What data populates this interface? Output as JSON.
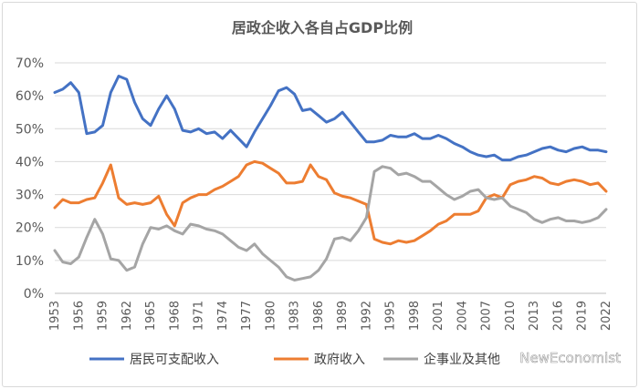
{
  "chart_data": {
    "type": "line",
    "title": "居政企收入各自占GDP比例",
    "xlabel": "",
    "ylabel": "",
    "ylim": [
      0,
      70
    ],
    "y_ticks": [
      "0%",
      "10%",
      "20%",
      "30%",
      "40%",
      "50%",
      "60%",
      "70%"
    ],
    "x_tick_labels": [
      "1953",
      "1956",
      "1959",
      "1962",
      "1965",
      "1968",
      "1971",
      "1974",
      "1977",
      "1980",
      "1983",
      "1986",
      "1989",
      "1992",
      "1995",
      "1998",
      "2001",
      "2004",
      "2007",
      "2010",
      "2013",
      "2016",
      "2019",
      "2022"
    ],
    "x": [
      1953,
      1954,
      1955,
      1956,
      1957,
      1958,
      1959,
      1960,
      1961,
      1962,
      1963,
      1964,
      1965,
      1966,
      1967,
      1968,
      1969,
      1970,
      1971,
      1972,
      1973,
      1974,
      1975,
      1976,
      1977,
      1978,
      1979,
      1980,
      1981,
      1982,
      1983,
      1984,
      1985,
      1986,
      1987,
      1988,
      1989,
      1990,
      1991,
      1992,
      1993,
      1994,
      1995,
      1996,
      1997,
      1998,
      1999,
      2000,
      2001,
      2002,
      2003,
      2004,
      2005,
      2006,
      2007,
      2008,
      2009,
      2010,
      2011,
      2012,
      2013,
      2014,
      2015,
      2016,
      2017,
      2018,
      2019,
      2020,
      2021,
      2022
    ],
    "legend_position": "bottom",
    "grid": true,
    "series": [
      {
        "name": "居民可支配收入",
        "color": "#4472C4",
        "values": [
          61,
          62,
          64,
          61,
          48.5,
          49,
          51,
          61,
          66,
          65,
          58,
          53,
          51,
          56,
          60,
          56,
          49.5,
          49,
          50,
          48.5,
          49,
          47,
          49.5,
          47,
          44.5,
          49,
          53,
          57,
          61.5,
          62.5,
          60.5,
          55.5,
          56,
          54,
          52,
          53,
          55,
          52,
          49,
          46,
          46,
          46.5,
          48,
          47.5,
          47.5,
          48.5,
          47,
          47,
          48,
          47,
          45.5,
          44.5,
          43,
          42,
          41.5,
          42,
          40.5,
          40.5,
          41.5,
          42,
          43,
          44,
          44.5,
          43.5,
          43,
          44,
          44.5,
          43.5,
          43.5,
          43
        ]
      },
      {
        "name": "政府收入",
        "color": "#ED7D31",
        "values": [
          26,
          28.5,
          27.5,
          27.5,
          28.5,
          29,
          33.5,
          39,
          29,
          27,
          27.5,
          27,
          27.5,
          29.5,
          24,
          20.5,
          27.5,
          29,
          30,
          30,
          31.5,
          32.5,
          34,
          35.5,
          39,
          40,
          39.5,
          38,
          36.5,
          33.5,
          33.5,
          34,
          39,
          35.5,
          34.5,
          30.5,
          29.5,
          29,
          28,
          27,
          16.5,
          15.5,
          15,
          16,
          15.5,
          16,
          17.5,
          19,
          21,
          22,
          24,
          24,
          24,
          25,
          29,
          30,
          29,
          33,
          34,
          34.5,
          35.5,
          35,
          33.5,
          33,
          34,
          34.5,
          34,
          33,
          33.5,
          31
        ]
      },
      {
        "name": "企事业及其他",
        "color": "#A5A5A5",
        "values": [
          13,
          9.5,
          9,
          11,
          17,
          22.5,
          18,
          10.5,
          10,
          7,
          8,
          15,
          20,
          19.5,
          20.5,
          19,
          18,
          21,
          20.5,
          19.5,
          19,
          18,
          16,
          14,
          13,
          15,
          12,
          10,
          8,
          5,
          4,
          4.5,
          5,
          7,
          10.5,
          16.5,
          17,
          16,
          19,
          23,
          37,
          38.5,
          38,
          36,
          36.5,
          35.5,
          34,
          34,
          32,
          30,
          28.5,
          29.5,
          31,
          31.5,
          29,
          28.5,
          29,
          26.5,
          25.5,
          24.5,
          22.5,
          21.5,
          22.5,
          23,
          22,
          22,
          21.5,
          22,
          23,
          25.5
        ]
      }
    ]
  },
  "watermark": "NewEconomist"
}
